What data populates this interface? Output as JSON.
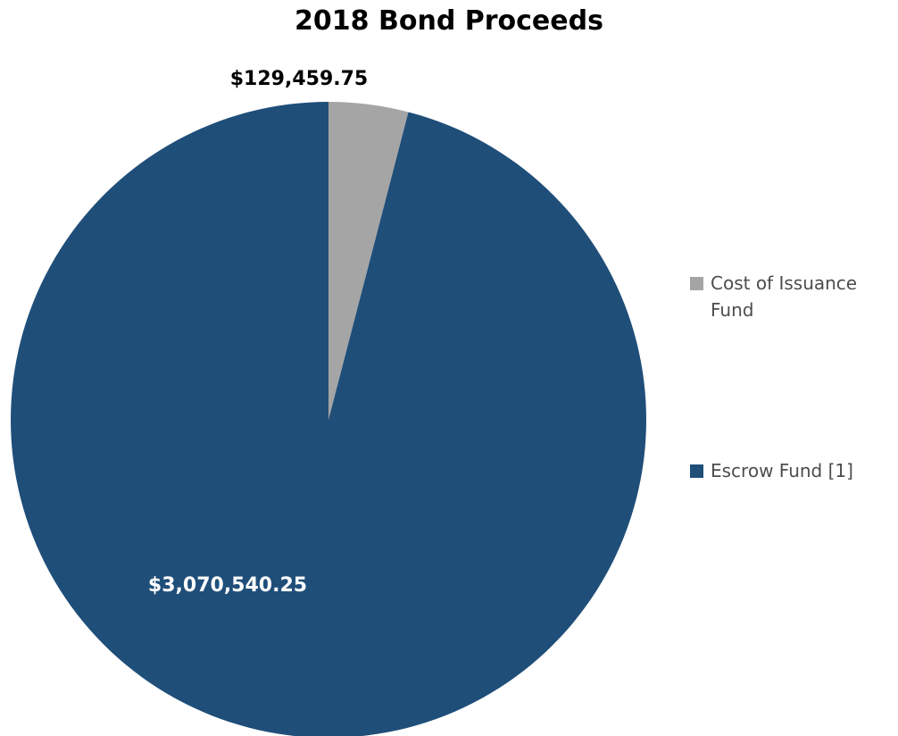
{
  "chart_data": {
    "type": "pie",
    "title": "2018 Bond Proceeds",
    "slices": [
      {
        "name": "Cost of Issuance Fund",
        "value": 129459.75,
        "label": "$129,459.75",
        "color": "#a5a5a5"
      },
      {
        "name": "Escrow Fund [1]",
        "value": 3070540.25,
        "label": "$3,070,540.25",
        "color": "#1f4e79"
      }
    ],
    "start_angle": "12 o'clock",
    "direction": "clockwise",
    "legend_position": "right"
  }
}
